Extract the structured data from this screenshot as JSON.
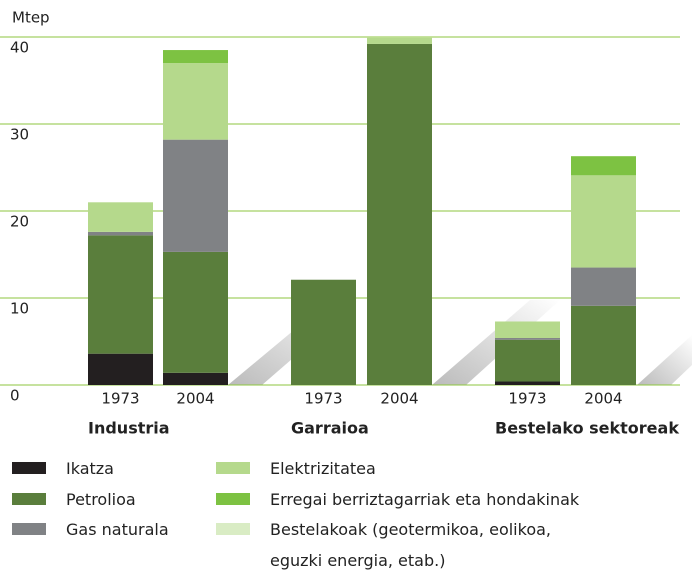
{
  "chart_data": {
    "type": "stacked-bar",
    "y_label": "Mtep",
    "categories": [
      "1973",
      "2004",
      "1973",
      "2004",
      "1973",
      "2004"
    ],
    "groups": [
      "Industria",
      "Garraioa",
      "Bestelako sektoreak"
    ],
    "ylim": [
      0,
      40
    ],
    "yticks": [
      0,
      10,
      20,
      30,
      40
    ],
    "grid": true,
    "series": [
      {
        "name": "Ikatza",
        "color": "#231f20",
        "values": [
          3.6,
          1.4,
          0,
          0,
          0.4,
          0
        ]
      },
      {
        "name": "Petrolioa",
        "color": "#5a7e3c",
        "values": [
          13.6,
          13.9,
          12.1,
          39.2,
          4.8,
          9.1
        ]
      },
      {
        "name": "Gas naturala",
        "color": "#808285",
        "values": [
          0.4,
          12.9,
          0,
          0,
          0.2,
          4.4
        ]
      },
      {
        "name": "Elektrizitatea",
        "color": "#b5d98c",
        "values": [
          3.4,
          8.8,
          0,
          0.7,
          1.9,
          10.6
        ]
      },
      {
        "name": "Erregai berriztagarriak eta hondakinak",
        "color": "#7dc242",
        "values": [
          0,
          1.5,
          0,
          0,
          0,
          2.2
        ]
      },
      {
        "name": "Bestelakoak (geotermikoa, eolikoa, eguzki energia, etab.)",
        "color": "#d9ecc4",
        "values": [
          0,
          0,
          0,
          0,
          0,
          0
        ]
      }
    ]
  }
}
